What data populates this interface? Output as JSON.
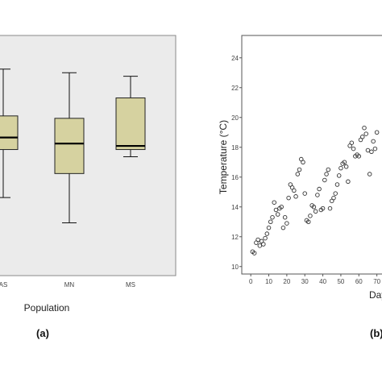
{
  "chart_data": [
    {
      "type": "box",
      "xlabel": "Population",
      "ylabel": "",
      "categories": [
        "AS",
        "MN",
        "MS"
      ],
      "boxes": [
        {
          "name": "AS",
          "whisker_low": 10.5,
          "q1": 14.5,
          "median": 15.5,
          "q3": 17.3,
          "whisker_high": 21.2
        },
        {
          "name": "MN",
          "whisker_low": 8.4,
          "q1": 12.5,
          "median": 15.0,
          "q3": 17.1,
          "whisker_high": 20.9
        },
        {
          "name": "MS",
          "whisker_low": 13.9,
          "q1": 14.5,
          "median": 14.8,
          "q3": 18.8,
          "whisker_high": 20.6
        }
      ],
      "ylim": [
        4,
        24
      ],
      "box_color": "#d6d2a0",
      "panel_color": "#ebebeb",
      "caption": "(a)"
    },
    {
      "type": "scatter",
      "xlabel": "Day",
      "ylabel": "Temperature (°C)",
      "xlim": [
        -5,
        80
      ],
      "ylim": [
        9.5,
        25.5
      ],
      "xticks": [
        0,
        10,
        20,
        30,
        40,
        50,
        60,
        70
      ],
      "yticks": [
        10,
        12,
        14,
        16,
        18,
        20,
        22,
        24
      ],
      "points": [
        [
          1,
          11.0
        ],
        [
          2,
          10.9
        ],
        [
          3,
          11.6
        ],
        [
          4,
          11.8
        ],
        [
          5,
          11.4
        ],
        [
          6,
          11.7
        ],
        [
          7,
          11.5
        ],
        [
          8,
          11.9
        ],
        [
          9,
          12.2
        ],
        [
          10,
          12.6
        ],
        [
          11,
          13.0
        ],
        [
          12,
          13.3
        ],
        [
          13,
          14.3
        ],
        [
          14,
          13.8
        ],
        [
          15,
          13.5
        ],
        [
          16,
          13.9
        ],
        [
          17,
          14.0
        ],
        [
          18,
          12.6
        ],
        [
          19,
          13.3
        ],
        [
          20,
          12.9
        ],
        [
          21,
          14.6
        ],
        [
          22,
          15.5
        ],
        [
          23,
          15.3
        ],
        [
          24,
          15.1
        ],
        [
          25,
          14.7
        ],
        [
          26,
          16.2
        ],
        [
          27,
          16.5
        ],
        [
          28,
          17.2
        ],
        [
          29,
          17.0
        ],
        [
          30,
          14.9
        ],
        [
          31,
          13.1
        ],
        [
          32,
          13.0
        ],
        [
          33,
          13.4
        ],
        [
          34,
          14.1
        ],
        [
          35,
          14.0
        ],
        [
          36,
          13.7
        ],
        [
          37,
          14.8
        ],
        [
          38,
          15.2
        ],
        [
          39,
          13.8
        ],
        [
          40,
          13.9
        ],
        [
          41,
          15.8
        ],
        [
          42,
          16.2
        ],
        [
          43,
          16.5
        ],
        [
          44,
          13.9
        ],
        [
          45,
          14.4
        ],
        [
          46,
          14.6
        ],
        [
          47,
          14.9
        ],
        [
          48,
          15.5
        ],
        [
          49,
          16.1
        ],
        [
          50,
          16.6
        ],
        [
          51,
          16.9
        ],
        [
          52,
          17.0
        ],
        [
          53,
          16.7
        ],
        [
          54,
          15.7
        ],
        [
          55,
          18.1
        ],
        [
          56,
          18.3
        ],
        [
          57,
          17.9
        ],
        [
          58,
          17.4
        ],
        [
          59,
          17.5
        ],
        [
          60,
          17.4
        ],
        [
          61,
          18.5
        ],
        [
          62,
          18.7
        ],
        [
          63,
          19.3
        ],
        [
          64,
          18.9
        ],
        [
          65,
          17.8
        ],
        [
          66,
          16.2
        ],
        [
          67,
          17.7
        ],
        [
          68,
          18.4
        ],
        [
          69,
          17.9
        ],
        [
          70,
          19.0
        ]
      ],
      "caption": "(b)"
    }
  ]
}
